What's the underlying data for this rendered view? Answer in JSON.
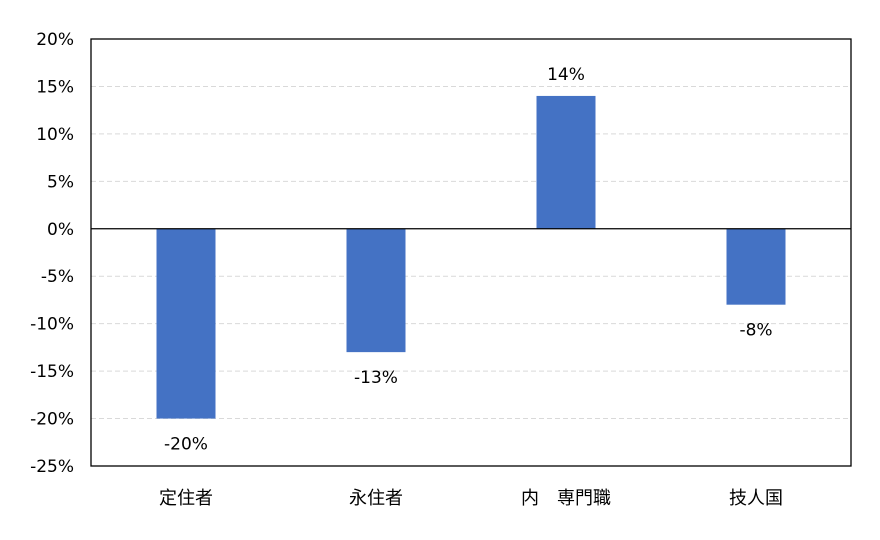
{
  "chart_data": {
    "type": "bar",
    "categories": [
      "定住者",
      "永住者",
      "内　専門職",
      "技人国"
    ],
    "values": [
      -20,
      -13,
      14,
      -8
    ],
    "data_labels": [
      "-20%",
      "-13%",
      "14%",
      "-8%"
    ],
    "ylim": [
      -25,
      20
    ],
    "yticks": [
      20,
      15,
      10,
      5,
      0,
      -5,
      -10,
      -15,
      -20,
      -25
    ],
    "ytick_labels": [
      "20%",
      "15%",
      "10%",
      "5%",
      "0%",
      "-5%",
      "-10%",
      "-15%",
      "-20%",
      "-25%"
    ],
    "grid": true,
    "legend": "none",
    "bar_color": "#4472C4",
    "grid_color": "#D9D9D9",
    "axis_color": "#000000"
  }
}
